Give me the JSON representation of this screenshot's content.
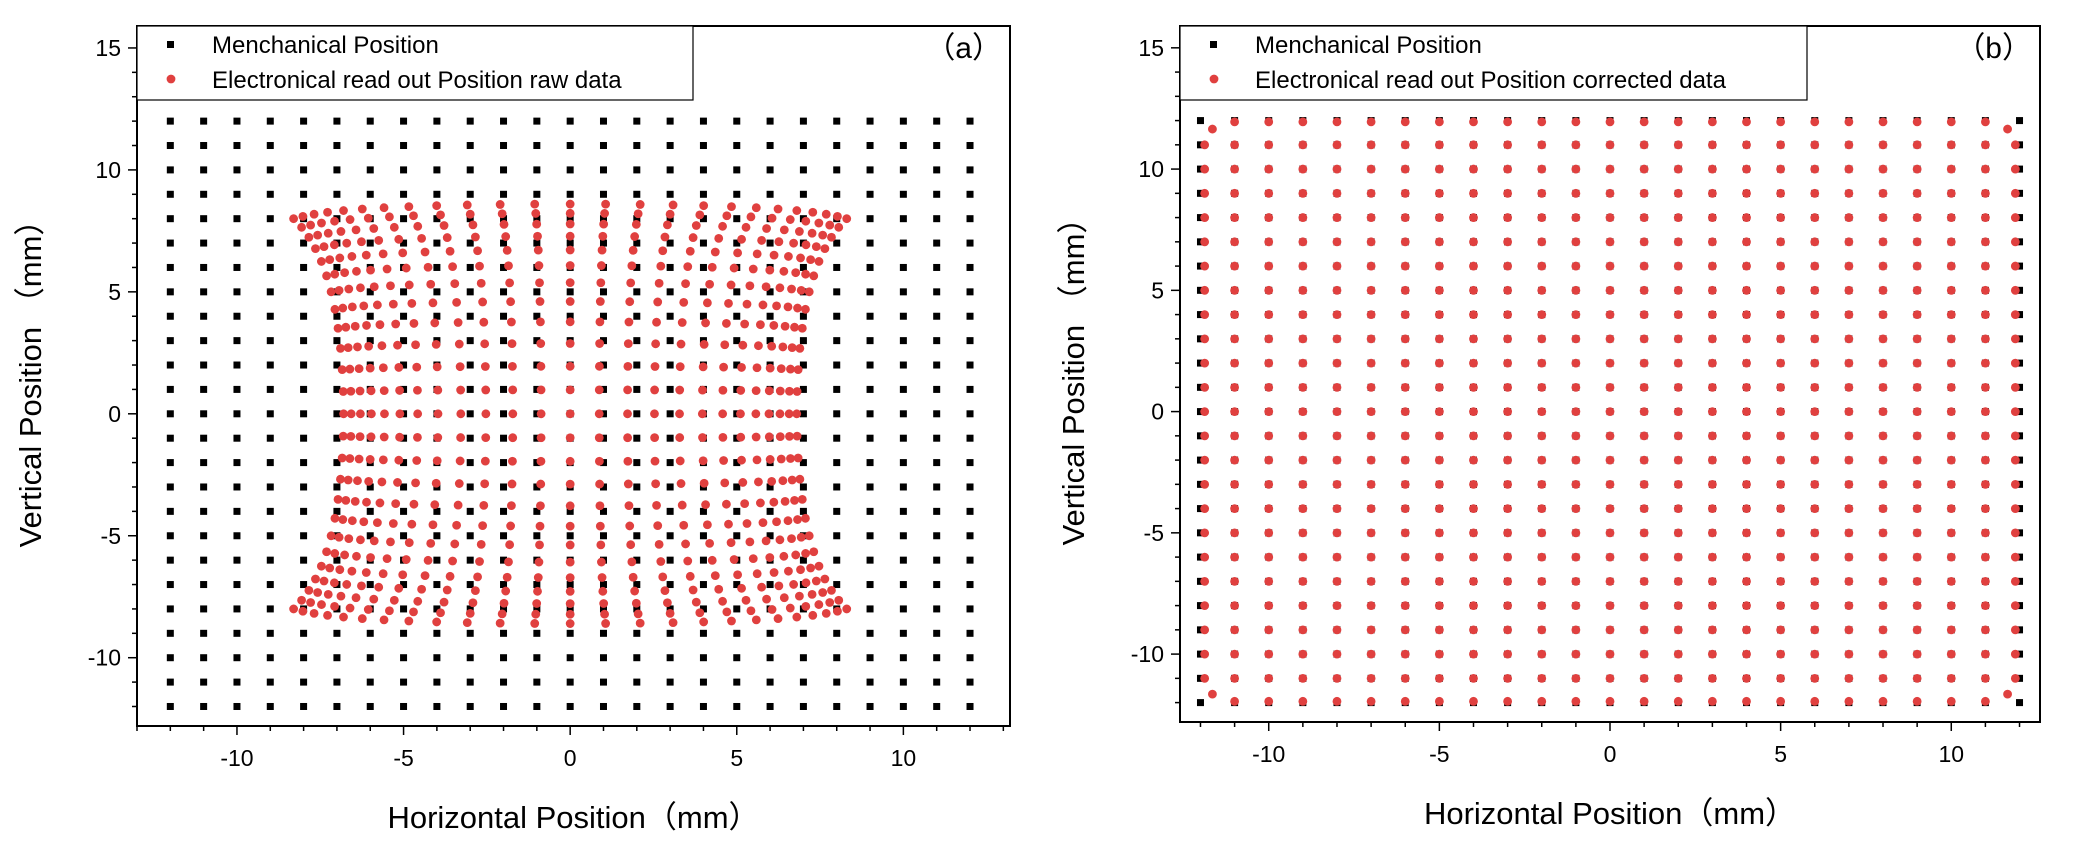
{
  "chart_data": [
    {
      "type": "scatter",
      "panel_label": "（a）",
      "xlabel": "Horizontal Position（mm）",
      "ylabel": "Vertical Position （mm）",
      "xlim": [
        -13,
        13.2
      ],
      "ylim": [
        -12.8,
        15.9
      ],
      "xticks": [
        -10,
        -5,
        0,
        5,
        10
      ],
      "yticks": [
        -10,
        -5,
        0,
        5,
        10,
        15
      ],
      "grid": false,
      "legend_position": "top-left",
      "series": [
        {
          "name": "Menchanical Position",
          "marker": "square",
          "color": "#000000",
          "grid": {
            "x_start": -12,
            "x_end": 12,
            "x_step": 1,
            "y_start": -12,
            "y_end": 12,
            "y_step": 1
          }
        },
        {
          "name": "Electronical read out Position raw data",
          "marker": "circle",
          "color": "#e0403f",
          "mapping": "raw",
          "grid": {
            "x_start": -12,
            "x_end": 12,
            "x_step": 1,
            "y_start": -12,
            "y_end": 12,
            "y_step": 1
          },
          "extent": {
            "x_half_center": 6.8,
            "x_half_edge": 8.3,
            "y_half_center": 8.6,
            "y_half_edge": 8.0,
            "x_saturation": 1.35,
            "y_saturation": 1.1
          }
        }
      ]
    },
    {
      "type": "scatter",
      "panel_label": "（b）",
      "xlabel": "Horizontal Position（mm）",
      "ylabel": "Vertical Position （mm）",
      "xlim": [
        -12.6,
        12.6
      ],
      "ylim": [
        -12.8,
        15.9
      ],
      "xticks": [
        -10,
        -5,
        0,
        5,
        10
      ],
      "yticks": [
        -10,
        -5,
        0,
        5,
        10,
        15
      ],
      "grid": false,
      "legend_position": "top-left",
      "series": [
        {
          "name": "Menchanical Position",
          "marker": "square",
          "color": "#000000",
          "grid": {
            "x_start": -12,
            "x_end": 12,
            "x_step": 1,
            "y_start": -12,
            "y_end": 12,
            "y_step": 1
          }
        },
        {
          "name": "Electronical read out Position corrected data",
          "marker": "circle",
          "color": "#e0403f",
          "mapping": "corrected",
          "grid": {
            "x_start": -12,
            "x_end": 12,
            "x_step": 1,
            "y_start": -12,
            "y_end": 12,
            "y_step": 1
          },
          "corner_pull": 0.35
        }
      ]
    }
  ]
}
